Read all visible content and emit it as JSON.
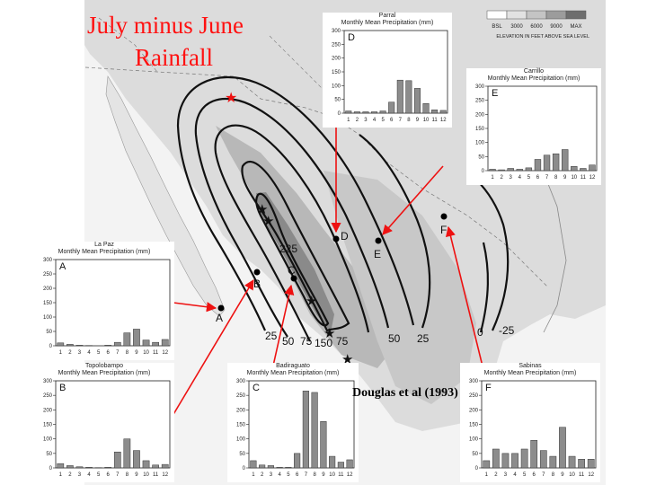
{
  "title": {
    "line1": "July minus June",
    "line2": "Rainfall"
  },
  "credit": "Douglas et al (1993)",
  "legend": {
    "steps": [
      "BSL",
      "3000",
      "6000",
      "9000",
      "MAX"
    ],
    "caption": "ELEVATION IN FEET ABOVE SEA LEVEL",
    "colors": [
      "#ffffff",
      "#e2e2e2",
      "#c4c4c4",
      "#9c9c9c",
      "#6e6e6e"
    ]
  },
  "contours": {
    "labels": [
      "225",
      "25",
      "50",
      "75",
      "150",
      "75",
      "50",
      "25",
      "0",
      "-25"
    ]
  },
  "stations": [
    {
      "id": "A",
      "color": "#000000"
    },
    {
      "id": "B",
      "color": "#000000"
    },
    {
      "id": "C",
      "color": "#000000"
    },
    {
      "id": "D",
      "color": "#000000"
    },
    {
      "id": "E",
      "color": "#000000"
    },
    {
      "id": "F",
      "color": "#000000"
    }
  ],
  "panel_common": {
    "title_line2": "Monthly Mean Precipitation (mm)",
    "months": [
      "1",
      "2",
      "3",
      "4",
      "5",
      "6",
      "7",
      "8",
      "9",
      "10",
      "11",
      "12"
    ],
    "yticks": [
      0,
      50,
      100,
      150,
      200,
      250,
      300
    ],
    "ylim": [
      0,
      300
    ]
  },
  "chart_data": [
    {
      "type": "bar",
      "letter": "A",
      "station": "La Paz",
      "categories": [
        "1",
        "2",
        "3",
        "4",
        "5",
        "6",
        "7",
        "8",
        "9",
        "10",
        "11",
        "12"
      ],
      "values": [
        10,
        5,
        2,
        1,
        0,
        2,
        12,
        45,
        58,
        20,
        12,
        22
      ],
      "ylim": [
        0,
        300
      ]
    },
    {
      "type": "bar",
      "letter": "B",
      "station": "Topolobampo",
      "categories": [
        "1",
        "2",
        "3",
        "4",
        "5",
        "6",
        "7",
        "8",
        "9",
        "10",
        "11",
        "12"
      ],
      "values": [
        15,
        8,
        4,
        2,
        1,
        2,
        55,
        100,
        60,
        25,
        10,
        12
      ],
      "ylim": [
        0,
        300
      ]
    },
    {
      "type": "bar",
      "letter": "C",
      "station": "Badiraguato",
      "categories": [
        "1",
        "2",
        "3",
        "4",
        "5",
        "6",
        "7",
        "8",
        "9",
        "10",
        "11",
        "12"
      ],
      "values": [
        25,
        10,
        8,
        2,
        2,
        50,
        265,
        260,
        160,
        40,
        20,
        28
      ],
      "ylim": [
        0,
        300
      ]
    },
    {
      "type": "bar",
      "letter": "D",
      "station": "Parral",
      "categories": [
        "1",
        "2",
        "3",
        "4",
        "5",
        "6",
        "7",
        "8",
        "9",
        "10",
        "11",
        "12"
      ],
      "values": [
        8,
        5,
        5,
        5,
        8,
        40,
        120,
        118,
        90,
        35,
        12,
        10
      ],
      "ylim": [
        0,
        300
      ]
    },
    {
      "type": "bar",
      "letter": "E",
      "station": "Carrillo",
      "categories": [
        "1",
        "2",
        "3",
        "4",
        "5",
        "6",
        "7",
        "8",
        "9",
        "10",
        "11",
        "12"
      ],
      "values": [
        5,
        3,
        8,
        5,
        10,
        40,
        55,
        60,
        75,
        15,
        8,
        20
      ],
      "ylim": [
        0,
        300
      ]
    },
    {
      "type": "bar",
      "letter": "F",
      "station": "Sabinas",
      "categories": [
        "1",
        "2",
        "3",
        "4",
        "5",
        "6",
        "7",
        "8",
        "9",
        "10",
        "11",
        "12"
      ],
      "values": [
        25,
        65,
        50,
        50,
        65,
        95,
        60,
        40,
        140,
        40,
        30,
        30
      ],
      "ylim": [
        0,
        300
      ]
    }
  ]
}
